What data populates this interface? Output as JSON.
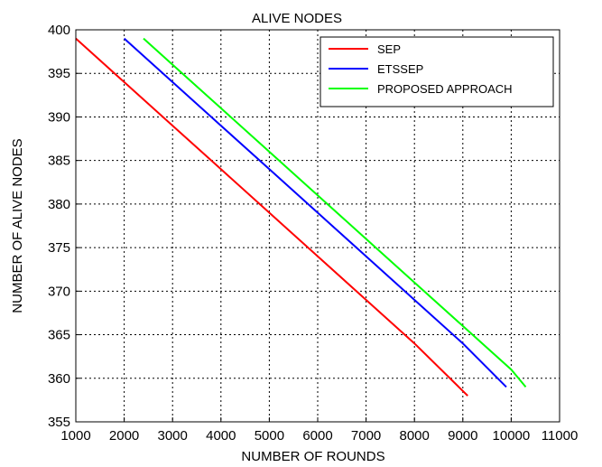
{
  "chart_data": {
    "type": "line",
    "title": "ALIVE NODES",
    "xlabel": "NUMBER OF ROUNDS",
    "ylabel": "NUMBER OF ALIVE NODES",
    "xlim": [
      1000,
      11000
    ],
    "ylim": [
      355,
      400
    ],
    "xticks": [
      "1000",
      "2000",
      "3000",
      "4000",
      "5000",
      "6000",
      "7000",
      "8000",
      "9000",
      "10000",
      "11000"
    ],
    "yticks": [
      "355",
      "360",
      "365",
      "370",
      "375",
      "380",
      "385",
      "390",
      "395",
      "400"
    ],
    "grid": true,
    "grid_style": "dotted",
    "legend_position": "top-right",
    "series": [
      {
        "name": "SEP",
        "color": "#ff0000",
        "x": [
          1000,
          2000,
          3000,
          4000,
          5000,
          6000,
          7000,
          8000,
          9100
        ],
        "y": [
          399,
          394,
          389,
          384,
          379,
          374,
          369,
          364,
          358
        ]
      },
      {
        "name": "ETSSEP",
        "color": "#0000ff",
        "x": [
          2000,
          3000,
          4000,
          5000,
          6000,
          7000,
          8000,
          9000,
          9900
        ],
        "y": [
          399,
          394,
          389,
          384,
          379,
          374,
          369,
          364,
          359
        ]
      },
      {
        "name": "PROPOSED APPROACH",
        "color": "#00ff00",
        "x": [
          2400,
          3000,
          4000,
          5000,
          6000,
          7000,
          8000,
          9000,
          10000,
          10300
        ],
        "y": [
          399,
          396,
          391,
          386,
          381,
          376,
          371,
          366,
          361,
          359
        ]
      }
    ]
  }
}
